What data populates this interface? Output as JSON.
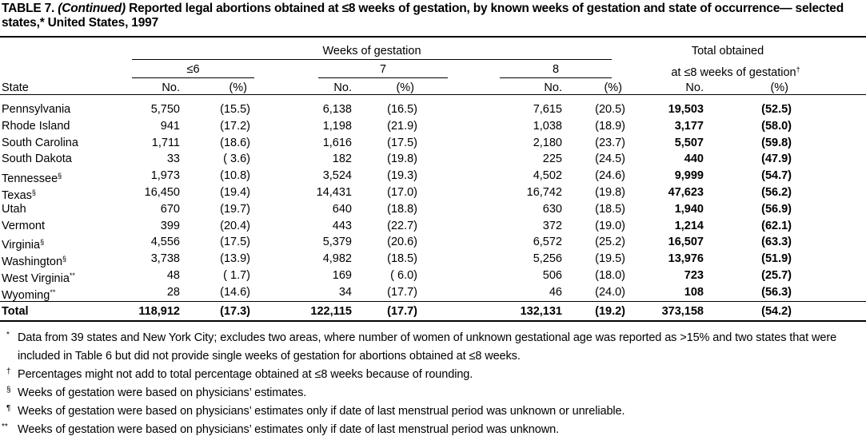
{
  "title": {
    "label": "TABLE 7.",
    "continued": "(Continued)",
    "text": "Reported legal abortions obtained at ≤8 weeks of gestation, by known weeks of gestation and state of occurrence— selected states,* United States, 1997"
  },
  "header": {
    "spanner": "Weeks of gestation",
    "groups": [
      "≤6",
      "7",
      "8"
    ],
    "total_line1": "Total obtained",
    "total_line2": "at ≤8 weeks of gestation",
    "total_mark": "†",
    "state": "State",
    "columns": [
      "No.",
      "(%)",
      "No.",
      "(%)",
      "No.",
      "(%)",
      "No.",
      "(%)"
    ]
  },
  "rows": [
    {
      "state": "Pennsylvania",
      "mark": null,
      "cells": [
        "5,750",
        "(15.5)",
        "6,138",
        "(16.5)",
        "7,615",
        "(20.5)",
        "19,503",
        "(52.5)"
      ]
    },
    {
      "state": "Rhode Island",
      "mark": null,
      "cells": [
        "941",
        "(17.2)",
        "1,198",
        "(21.9)",
        "1,038",
        "(18.9)",
        "3,177",
        "(58.0)"
      ]
    },
    {
      "state": "South Carolina",
      "mark": null,
      "cells": [
        "1,711",
        "(18.6)",
        "1,616",
        "(17.5)",
        "2,180",
        "(23.7)",
        "5,507",
        "(59.8)"
      ]
    },
    {
      "state": "South Dakota",
      "mark": null,
      "cells": [
        "33",
        "( 3.6)",
        "182",
        "(19.8)",
        "225",
        "(24.5)",
        "440",
        "(47.9)"
      ]
    },
    {
      "state": "Tennessee",
      "mark": "§",
      "cells": [
        "1,973",
        "(10.8)",
        "3,524",
        "(19.3)",
        "4,502",
        "(24.6)",
        "9,999",
        "(54.7)"
      ]
    },
    {
      "state": "Texas",
      "mark": "§",
      "cells": [
        "16,450",
        "(19.4)",
        "14,431",
        "(17.0)",
        "16,742",
        "(19.8)",
        "47,623",
        "(56.2)"
      ]
    },
    {
      "state": "Utah",
      "mark": null,
      "cells": [
        "670",
        "(19.7)",
        "640",
        "(18.8)",
        "630",
        "(18.5)",
        "1,940",
        "(56.9)"
      ]
    },
    {
      "state": "Vermont",
      "mark": null,
      "cells": [
        "399",
        "(20.4)",
        "443",
        "(22.7)",
        "372",
        "(19.0)",
        "1,214",
        "(62.1)"
      ]
    },
    {
      "state": "Virginia",
      "mark": "§",
      "cells": [
        "4,556",
        "(17.5)",
        "5,379",
        "(20.6)",
        "6,572",
        "(25.2)",
        "16,507",
        "(63.3)"
      ]
    },
    {
      "state": "Washington",
      "mark": "§",
      "cells": [
        "3,738",
        "(13.9)",
        "4,982",
        "(18.5)",
        "5,256",
        "(19.5)",
        "13,976",
        "(51.9)"
      ]
    },
    {
      "state": "West Virginia",
      "mark": "**",
      "cells": [
        "48",
        "( 1.7)",
        "169",
        "( 6.0)",
        "506",
        "(18.0)",
        "723",
        "(25.7)"
      ]
    },
    {
      "state": "Wyoming",
      "mark": "**",
      "cells": [
        "28",
        "(14.6)",
        "34",
        "(17.7)",
        "46",
        "(24.0)",
        "108",
        "(56.3)"
      ]
    }
  ],
  "total": {
    "label": "Total",
    "cells": [
      "118,912",
      "(17.3)",
      "122,115",
      "(17.7)",
      "132,131",
      "(19.2)",
      "373,158",
      "(54.2)"
    ]
  },
  "footnotes": [
    {
      "mark": "*",
      "text": "Data from 39 states and New York City; excludes two areas, where number of women of unknown gestational age was reported as >15% and two states that were included in Table 6 but did not provide single weeks of gestation for abortions obtained at ≤8 weeks."
    },
    {
      "mark": "†",
      "text": "Percentages might not add to total percentage obtained at ≤8 weeks because of rounding."
    },
    {
      "mark": "§",
      "text": "Weeks of gestation were based on physicians’ estimates."
    },
    {
      "mark": "¶",
      "text": "Weeks of gestation were based on physicians’ estimates only if date of last menstrual period was unknown or unreliable."
    },
    {
      "mark": "**",
      "text": "Weeks of gestation were based on physicians’ estimates only if date of last menstrual period was unknown."
    }
  ]
}
